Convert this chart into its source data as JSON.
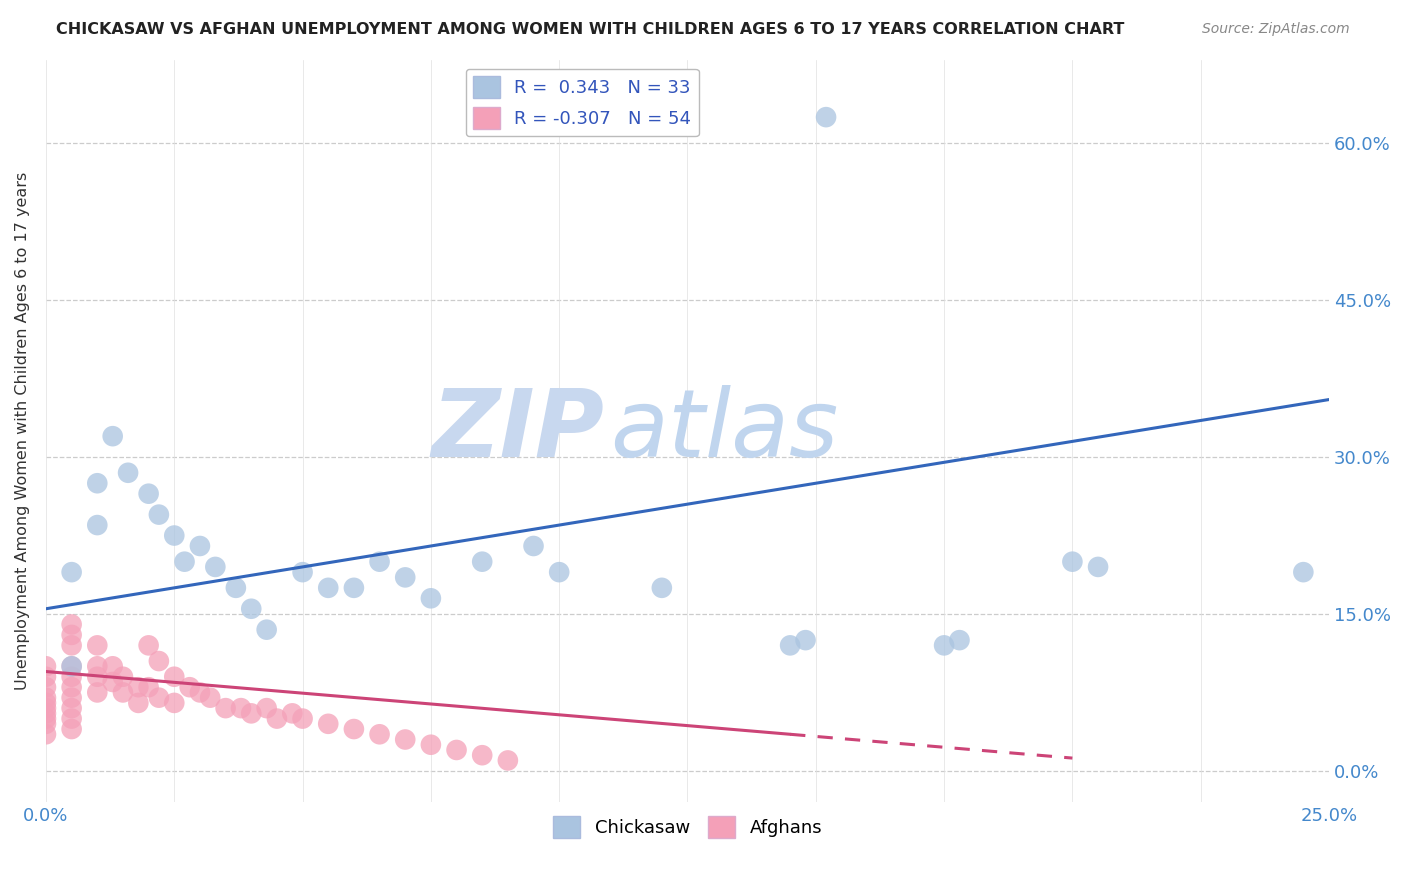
{
  "title": "CHICKASAW VS AFGHAN UNEMPLOYMENT AMONG WOMEN WITH CHILDREN AGES 6 TO 17 YEARS CORRELATION CHART",
  "source": "Source: ZipAtlas.com",
  "ylabel": "Unemployment Among Women with Children Ages 6 to 17 years",
  "ytick_labels": [
    "0.0%",
    "15.0%",
    "30.0%",
    "45.0%",
    "60.0%"
  ],
  "ytick_values": [
    0.0,
    0.15,
    0.3,
    0.45,
    0.6
  ],
  "xlim": [
    0.0,
    0.25
  ],
  "ylim": [
    -0.03,
    0.68
  ],
  "chickasaw_R": 0.343,
  "chickasaw_N": 33,
  "afghan_R": -0.307,
  "afghan_N": 54,
  "chickasaw_color": "#aac4e0",
  "afghan_color": "#f4a0b8",
  "chickasaw_line_color": "#3366bb",
  "afghan_line_color": "#cc4477",
  "watermark_zip": "ZIP",
  "watermark_atlas": "atlas",
  "watermark_color_zip": "#c8d8ef",
  "watermark_color_atlas": "#c0d5ee",
  "background_color": "#ffffff",
  "chickasaw_x": [
    0.005,
    0.005,
    0.01,
    0.01,
    0.013,
    0.016,
    0.02,
    0.022,
    0.025,
    0.027,
    0.03,
    0.033,
    0.037,
    0.04,
    0.043,
    0.05,
    0.055,
    0.06,
    0.065,
    0.07,
    0.075,
    0.085,
    0.095,
    0.1,
    0.12,
    0.145,
    0.148,
    0.175,
    0.178,
    0.2,
    0.205,
    0.152,
    0.245
  ],
  "chickasaw_y": [
    0.19,
    0.1,
    0.275,
    0.235,
    0.32,
    0.285,
    0.265,
    0.245,
    0.225,
    0.2,
    0.215,
    0.195,
    0.175,
    0.155,
    0.135,
    0.19,
    0.175,
    0.175,
    0.2,
    0.185,
    0.165,
    0.2,
    0.215,
    0.19,
    0.175,
    0.12,
    0.125,
    0.12,
    0.125,
    0.2,
    0.195,
    0.625,
    0.19
  ],
  "afghan_x": [
    0.0,
    0.0,
    0.0,
    0.0,
    0.0,
    0.0,
    0.0,
    0.0,
    0.0,
    0.0,
    0.005,
    0.005,
    0.005,
    0.005,
    0.005,
    0.005,
    0.005,
    0.005,
    0.005,
    0.005,
    0.01,
    0.01,
    0.01,
    0.01,
    0.013,
    0.013,
    0.015,
    0.015,
    0.018,
    0.018,
    0.02,
    0.02,
    0.022,
    0.022,
    0.025,
    0.025,
    0.028,
    0.03,
    0.032,
    0.035,
    0.038,
    0.04,
    0.043,
    0.045,
    0.048,
    0.05,
    0.055,
    0.06,
    0.065,
    0.07,
    0.075,
    0.08,
    0.085,
    0.09
  ],
  "afghan_y": [
    0.1,
    0.09,
    0.08,
    0.07,
    0.065,
    0.06,
    0.055,
    0.05,
    0.045,
    0.035,
    0.14,
    0.13,
    0.12,
    0.1,
    0.09,
    0.08,
    0.07,
    0.06,
    0.05,
    0.04,
    0.12,
    0.1,
    0.09,
    0.075,
    0.1,
    0.085,
    0.09,
    0.075,
    0.08,
    0.065,
    0.12,
    0.08,
    0.105,
    0.07,
    0.09,
    0.065,
    0.08,
    0.075,
    0.07,
    0.06,
    0.06,
    0.055,
    0.06,
    0.05,
    0.055,
    0.05,
    0.045,
    0.04,
    0.035,
    0.03,
    0.025,
    0.02,
    0.015,
    0.01
  ],
  "chick_line_x0": 0.0,
  "chick_line_x1": 0.25,
  "chick_line_y0": 0.155,
  "chick_line_y1": 0.355,
  "afghan_line_x0": 0.0,
  "afghan_line_x1": 0.145,
  "afghan_line_y0": 0.095,
  "afghan_line_y1": 0.035
}
